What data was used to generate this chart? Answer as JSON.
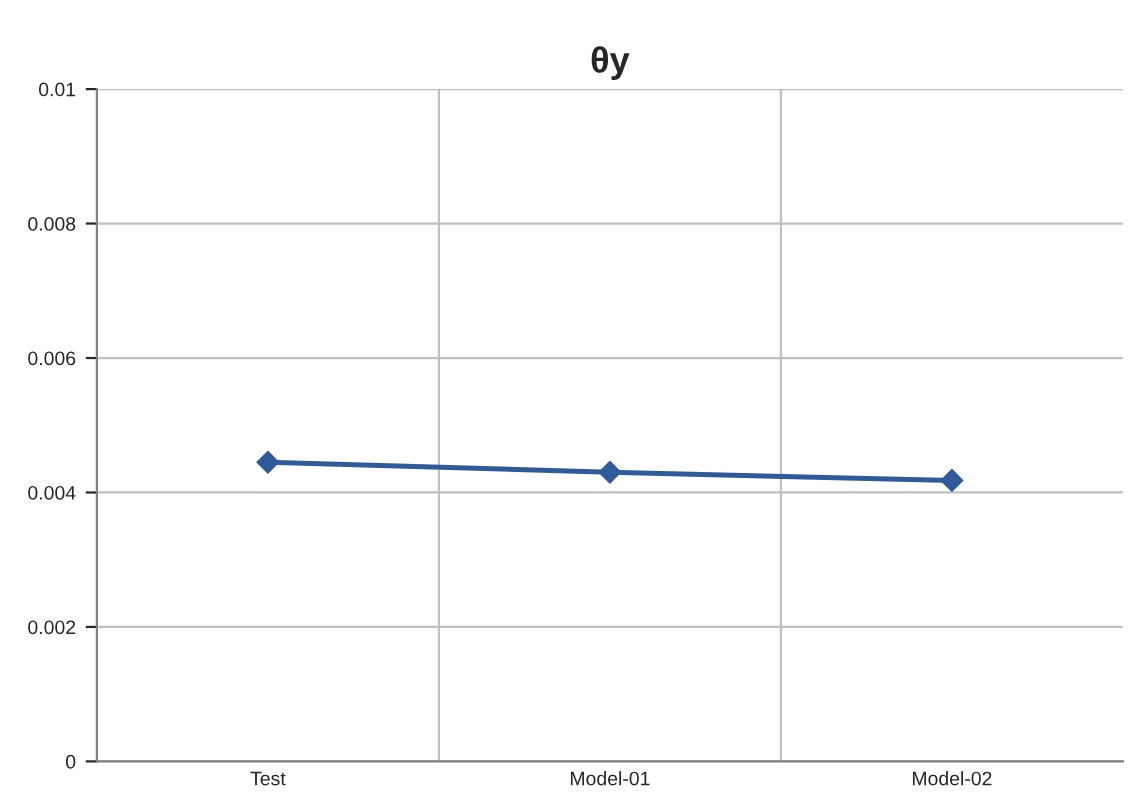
{
  "chart_data": {
    "type": "line",
    "title": "θy",
    "categories": [
      "Test",
      "Model-01",
      "Model-02"
    ],
    "series": [
      {
        "color": "#2f5b9b",
        "values": [
          0.00445,
          0.0043,
          0.00418
        ]
      }
    ],
    "ylim": [
      0,
      0.01
    ],
    "yticks": [
      0,
      0.002,
      0.004,
      0.006,
      0.008,
      0.01
    ],
    "grid": true,
    "marker": "diamond",
    "line_style": "solid",
    "legend": false
  }
}
